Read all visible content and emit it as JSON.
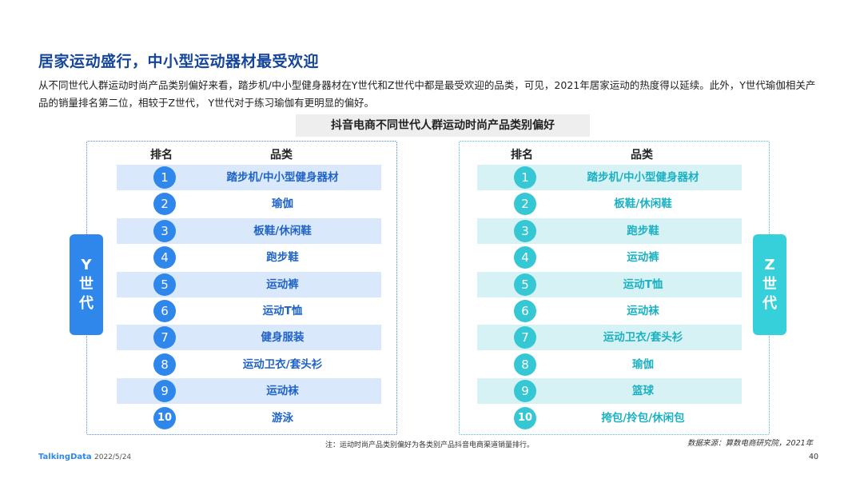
{
  "title": "居家运动盛行，中小型运动器材最受欢迎",
  "description": "从不同世代人群运动时尚产品类别偏好来看，踏步机/中小型健身器材在Y世代和Z世代中都是最受欢迎的品类，可见，2021年居家运动的热度得以延续。此外，Y世代瑜伽相关产品的销量排名第二位，相较于Z世代， Y世代对于练习瑜伽有更明显的偏好。",
  "subtitle": "抖音电商不同世代人群运动时尚产品类别偏好",
  "headers": {
    "rank": "排名",
    "category": "品类"
  },
  "y_gen": {
    "tab_label": "Y\n世\n代",
    "color": "#2f87ec",
    "rows": [
      {
        "rank": "1",
        "category": "踏步机/中小型健身器材"
      },
      {
        "rank": "2",
        "category": "瑜伽"
      },
      {
        "rank": "3",
        "category": "板鞋/休闲鞋"
      },
      {
        "rank": "4",
        "category": "跑步鞋"
      },
      {
        "rank": "5",
        "category": "运动裤"
      },
      {
        "rank": "6",
        "category": "运动T恤"
      },
      {
        "rank": "7",
        "category": "健身服装"
      },
      {
        "rank": "8",
        "category": "运动卫衣/套头衫"
      },
      {
        "rank": "9",
        "category": "运动袜"
      },
      {
        "rank": "10",
        "category": "游泳"
      }
    ]
  },
  "z_gen": {
    "tab_label": "Z\n世\n代",
    "color": "#36c7d4",
    "rows": [
      {
        "rank": "1",
        "category": "踏步机/中小型健身器材"
      },
      {
        "rank": "2",
        "category": "板鞋/休闲鞋"
      },
      {
        "rank": "3",
        "category": "跑步鞋"
      },
      {
        "rank": "4",
        "category": "运动裤"
      },
      {
        "rank": "5",
        "category": "运动T恤"
      },
      {
        "rank": "6",
        "category": "运动袜"
      },
      {
        "rank": "7",
        "category": "运动卫衣/套头衫"
      },
      {
        "rank": "8",
        "category": "瑜伽"
      },
      {
        "rank": "9",
        "category": "篮球"
      },
      {
        "rank": "10",
        "category": "挎包/拎包/休闲包"
      }
    ]
  },
  "footer": {
    "note": "注：运动时尚产品类别偏好为各类别产品抖音电商渠道销量排行。",
    "source": "数据来源：算数电商研究院，2021年",
    "brand": "TalkingData",
    "date": "2022/5/24",
    "page": "40"
  }
}
